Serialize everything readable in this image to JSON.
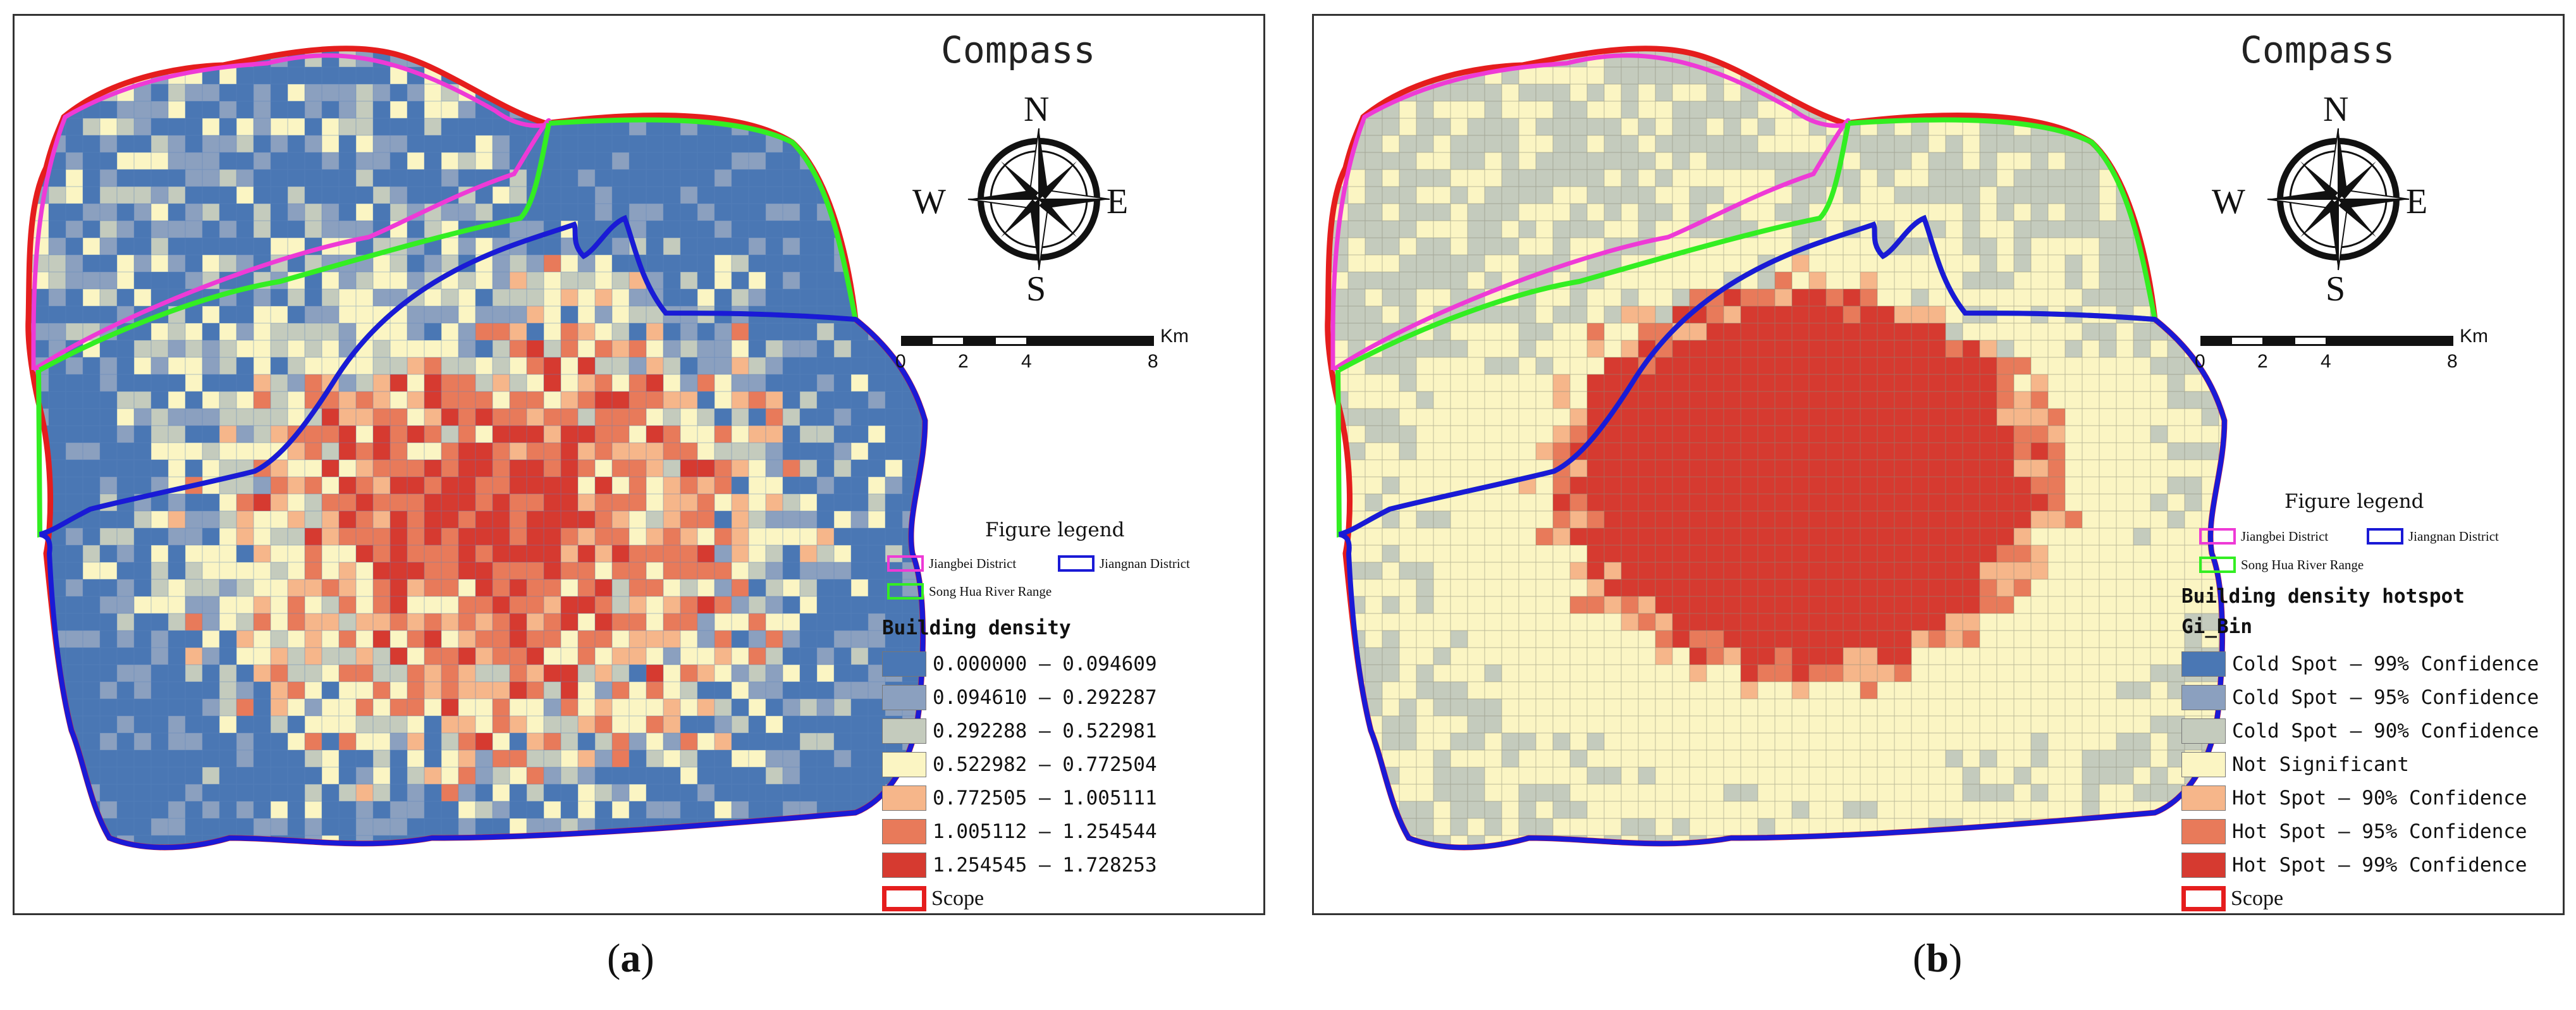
{
  "panels": [
    {
      "caption": "(a)",
      "caption_letter": "a",
      "compass_title": "Compass",
      "directions": {
        "n": "N",
        "s": "S",
        "e": "E",
        "w": "W"
      },
      "scale": {
        "ticks": [
          "0",
          "2",
          "4",
          "8"
        ],
        "unit": "Km"
      },
      "legend_title": "Figure legend",
      "boundaries": {
        "jiangbei": "Jiangbei District",
        "jiangnan": "Jiangnan District",
        "river": "Song Hua River Range"
      },
      "density_title": "Building density",
      "subtitle": "",
      "classes": [
        {
          "label": "0.000000 — 0.094609",
          "color": "#4a77b4"
        },
        {
          "label": "0.094610 — 0.292287",
          "color": "#8ba0bf"
        },
        {
          "label": "0.292288 — 0.522981",
          "color": "#c4cbbd"
        },
        {
          "label": "0.522982 — 0.772504",
          "color": "#fbf5c3"
        },
        {
          "label": "0.772505 — 1.005111",
          "color": "#f6b68a"
        },
        {
          "label": "1.005112 — 1.254544",
          "color": "#e87a5a"
        },
        {
          "label": "1.254545 — 1.728253",
          "color": "#d63a30"
        }
      ],
      "scope_label": "Scope"
    },
    {
      "caption": "(b)",
      "caption_letter": "b",
      "compass_title": "Compass",
      "directions": {
        "n": "N",
        "s": "S",
        "e": "E",
        "w": "W"
      },
      "scale": {
        "ticks": [
          "0",
          "2",
          "4",
          "8"
        ],
        "unit": "Km"
      },
      "legend_title": "Figure legend",
      "boundaries": {
        "jiangbei": "Jiangbei District",
        "jiangnan": "Jiangnan District",
        "river": "Song Hua River Range"
      },
      "density_title": "Building density hotspot",
      "subtitle": "Gi_Bin",
      "classes": [
        {
          "label": "Cold Spot — 99% Confidence",
          "color": "#4a77b4"
        },
        {
          "label": "Cold Spot — 95% Confidence",
          "color": "#8ba0bf"
        },
        {
          "label": "Cold Spot — 90% Confidence",
          "color": "#c4cbbd"
        },
        {
          "label": "Not Significant",
          "color": "#fbf5c3"
        },
        {
          "label": "Hot Spot — 90% Confidence",
          "color": "#f6b68a"
        },
        {
          "label": "Hot Spot — 95% Confidence",
          "color": "#e87a5a"
        },
        {
          "label": "Hot Spot — 99% Confidence",
          "color": "#d63a30"
        }
      ],
      "scope_label": "Scope"
    }
  ],
  "boundary_colors": {
    "scope": "#e51d1d",
    "jiangbei": "#ee3ad6",
    "jiangnan": "#1a1ad6",
    "river": "#33ee22"
  }
}
